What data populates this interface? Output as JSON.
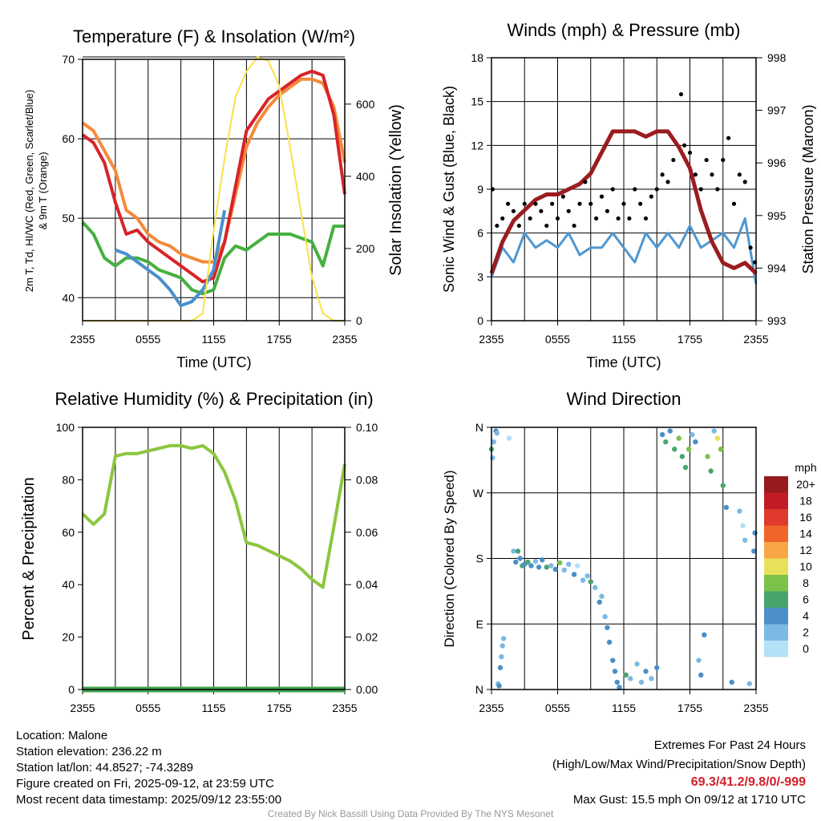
{
  "x_ticks": [
    "2355",
    "0555",
    "1155",
    "1755",
    "2355"
  ],
  "chart_data": [
    {
      "type": "line",
      "title": "Temperature (F) & Insolation (W/m²)",
      "xlabel": "Time (UTC)",
      "ylabel_lines": [
        "2m T, Td, HI/WC (Red, Green, Scarlet/Blue)",
        "& 9m T (Orange)"
      ],
      "ylabel_right": "Solar Insolation (Yellow)",
      "ylim": [
        37.1,
        70
      ],
      "ylim_right": [
        0,
        724
      ],
      "yticks": [
        40,
        50,
        60,
        70
      ],
      "yticks_right": [
        0,
        200,
        400,
        600
      ],
      "x_hours": [
        0,
        1,
        2,
        3,
        4,
        5,
        6,
        7,
        8,
        9,
        10,
        11,
        12,
        13,
        14,
        15,
        16,
        17,
        18,
        19,
        20,
        21,
        22,
        23,
        24
      ],
      "series": [
        {
          "name": "9m T",
          "color": "#f58a3a",
          "axis": "left",
          "values": [
            62,
            61,
            58.5,
            56,
            51,
            50,
            48,
            47,
            46.5,
            45.5,
            45,
            44.5,
            44.5,
            47,
            53,
            59,
            62,
            64,
            65.5,
            66.5,
            67.5,
            67.5,
            67,
            64,
            57
          ]
        },
        {
          "name": "2m T",
          "color": "#d7242a",
          "axis": "left",
          "values": [
            60.5,
            59.5,
            57,
            52,
            48,
            48.5,
            47,
            46,
            45,
            44,
            43,
            42,
            42.5,
            47,
            54,
            61,
            63,
            65,
            66,
            67,
            68,
            68.5,
            68,
            63,
            53
          ]
        },
        {
          "name": "Td",
          "color": "#45b03e",
          "axis": "left",
          "values": [
            49.5,
            48,
            45,
            44,
            45,
            45,
            44.5,
            43.5,
            43,
            42.5,
            41,
            40.5,
            41,
            45,
            46.5,
            46,
            47,
            48,
            48,
            48,
            47.5,
            47,
            44,
            49,
            49
          ]
        },
        {
          "name": "HI/WC",
          "color": "#4a90cc",
          "axis": "left",
          "x_start": 3,
          "values": [
            46,
            45.5,
            44.5,
            43.5,
            42.5,
            41,
            39,
            39.5,
            41,
            43.5,
            51
          ]
        },
        {
          "name": "Solar Insolation",
          "color": "#fbe04a",
          "axis": "right",
          "values": [
            0,
            0,
            0,
            0,
            0,
            0,
            0,
            0,
            0,
            0,
            0,
            20,
            250,
            450,
            620,
            690,
            730,
            720,
            650,
            480,
            300,
            120,
            20,
            0,
            0
          ]
        }
      ]
    },
    {
      "type": "line",
      "title": "Winds (mph) & Pressure (mb)",
      "xlabel": "Time (UTC)",
      "ylabel": "Sonic Wind & Gust (Blue, Black)",
      "ylabel_right": "Station Pressure (Maroon)",
      "ylim": [
        0,
        18
      ],
      "ylim_right": [
        993,
        998
      ],
      "yticks": [
        0,
        3,
        6,
        9,
        12,
        15,
        18
      ],
      "yticks_right": [
        993,
        994,
        995,
        996,
        997,
        998
      ],
      "x_hours": [
        0,
        1,
        2,
        3,
        4,
        5,
        6,
        7,
        8,
        9,
        10,
        11,
        12,
        13,
        14,
        15,
        16,
        17,
        18,
        19,
        20,
        21,
        22,
        23,
        24
      ],
      "series": [
        {
          "name": "Sonic Wind",
          "color": "#4f97d1",
          "axis": "left",
          "values": [
            3,
            5,
            4,
            6,
            5,
            5.5,
            5,
            6,
            4.5,
            5,
            5,
            6,
            5,
            4,
            6,
            5,
            6,
            5,
            6.5,
            5,
            5.5,
            6,
            5,
            7,
            2.5
          ]
        },
        {
          "name": "Station Pressure",
          "color": "#9b1c1f",
          "axis": "right",
          "values": [
            993.9,
            994.5,
            994.9,
            995.1,
            995.3,
            995.4,
            995.4,
            995.5,
            995.6,
            995.8,
            996.2,
            996.6,
            996.6,
            996.6,
            996.5,
            996.6,
            996.6,
            996.3,
            995.9,
            995.1,
            994.5,
            994.1,
            994,
            994.1,
            993.9
          ]
        }
      ],
      "gust_points": [
        [
          0.1,
          9
        ],
        [
          0.5,
          6.5
        ],
        [
          1,
          7
        ],
        [
          1.5,
          8
        ],
        [
          2,
          7.5
        ],
        [
          2.5,
          6.5
        ],
        [
          3,
          8
        ],
        [
          3.5,
          7
        ],
        [
          4,
          8
        ],
        [
          4.5,
          7.5
        ],
        [
          5,
          6.5
        ],
        [
          5.5,
          8
        ],
        [
          6,
          7
        ],
        [
          6.5,
          8.5
        ],
        [
          7,
          7.5
        ],
        [
          7.5,
          6.5
        ],
        [
          8,
          8
        ],
        [
          8.5,
          9.5
        ],
        [
          9,
          8
        ],
        [
          9.5,
          7
        ],
        [
          10,
          8.5
        ],
        [
          10.5,
          7.5
        ],
        [
          11,
          9
        ],
        [
          11.5,
          7
        ],
        [
          12,
          8
        ],
        [
          12.5,
          7
        ],
        [
          13,
          9
        ],
        [
          13.5,
          8
        ],
        [
          14,
          7
        ],
        [
          14.5,
          8.5
        ],
        [
          15,
          9
        ],
        [
          15.5,
          10
        ],
        [
          16,
          9.5
        ],
        [
          16.5,
          11
        ],
        [
          17.2,
          15.5
        ],
        [
          17.5,
          12
        ],
        [
          18,
          11.5
        ],
        [
          18.5,
          10
        ],
        [
          19,
          9
        ],
        [
          19.5,
          11
        ],
        [
          20,
          10
        ],
        [
          20.5,
          9
        ],
        [
          21,
          11
        ],
        [
          21.5,
          12.5
        ],
        [
          22,
          8
        ],
        [
          22.5,
          10
        ],
        [
          23,
          9.5
        ],
        [
          23.5,
          5
        ],
        [
          23.9,
          4
        ]
      ]
    },
    {
      "type": "line",
      "title": "Relative Humidity (%) & Precipitation (in)",
      "ylabel": "Percent & Precipitation",
      "ylim": [
        0,
        100
      ],
      "ylim_right": [
        0,
        0.1
      ],
      "yticks": [
        0,
        20,
        40,
        60,
        80,
        100
      ],
      "yticks_right": [
        "0.00",
        "0.02",
        "0.04",
        "0.06",
        "0.08",
        "0.10"
      ],
      "x_hours": [
        0,
        1,
        2,
        3,
        4,
        5,
        6,
        7,
        8,
        9,
        10,
        11,
        12,
        13,
        14,
        15,
        16,
        17,
        18,
        19,
        20,
        21,
        22,
        23,
        24
      ],
      "series": [
        {
          "name": "Relative Humidity",
          "color": "#8cc63f",
          "axis": "left",
          "values": [
            67,
            63,
            67,
            89,
            90,
            90,
            91,
            92,
            93,
            93,
            92,
            93,
            90,
            83,
            72,
            56,
            55,
            53,
            51,
            49,
            46,
            42,
            39,
            62,
            86
          ]
        },
        {
          "name": "Precipitation",
          "color": "#3fa34d",
          "axis": "right",
          "values": [
            0,
            0,
            0,
            0,
            0,
            0,
            0,
            0,
            0,
            0,
            0,
            0,
            0,
            0,
            0,
            0,
            0,
            0,
            0,
            0,
            0,
            0,
            0,
            0,
            0
          ]
        }
      ]
    },
    {
      "type": "scatter",
      "title": "Wind Direction",
      "ylabel": "Direction (Colored By Speed)",
      "ylim": [
        0,
        360
      ],
      "yticks": [
        {
          "v": 0,
          "label": "N"
        },
        {
          "v": 90,
          "label": "E"
        },
        {
          "v": 180,
          "label": "S"
        },
        {
          "v": 270,
          "label": "W"
        },
        {
          "v": 360,
          "label": "N"
        }
      ],
      "points": [
        [
          0,
          330,
          6
        ],
        [
          0.1,
          318,
          3
        ],
        [
          0.2,
          340,
          3
        ],
        [
          0.4,
          355,
          4
        ],
        [
          0.5,
          352,
          2
        ],
        [
          0.6,
          8,
          3
        ],
        [
          0.7,
          5,
          4
        ],
        [
          0.8,
          30,
          4
        ],
        [
          0.9,
          45,
          3
        ],
        [
          1,
          60,
          3
        ],
        [
          1.1,
          70,
          2
        ],
        [
          1.6,
          345,
          1
        ],
        [
          2,
          190,
          3
        ],
        [
          2.2,
          175,
          4
        ],
        [
          2.4,
          190,
          6
        ],
        [
          2.6,
          180,
          4
        ],
        [
          2.8,
          170,
          6
        ],
        [
          3,
          172,
          4
        ],
        [
          3.3,
          175,
          6
        ],
        [
          3.6,
          170,
          5
        ],
        [
          4,
          176,
          3
        ],
        [
          4.3,
          168,
          4
        ],
        [
          4.6,
          178,
          4
        ],
        [
          5,
          168,
          6
        ],
        [
          5.4,
          170,
          3
        ],
        [
          5.8,
          165,
          4
        ],
        [
          6.2,
          174,
          8
        ],
        [
          6.6,
          164,
          3
        ],
        [
          7,
          172,
          2
        ],
        [
          7.5,
          158,
          4
        ],
        [
          7.8,
          170,
          1
        ],
        [
          8.3,
          150,
          3
        ],
        [
          8.7,
          156,
          2
        ],
        [
          9,
          148,
          7
        ],
        [
          9.4,
          140,
          2
        ],
        [
          9.8,
          120,
          4
        ],
        [
          10,
          128,
          3
        ],
        [
          10.3,
          100,
          3
        ],
        [
          10.5,
          85,
          4
        ],
        [
          10.7,
          65,
          5
        ],
        [
          11,
          40,
          4
        ],
        [
          11.2,
          25,
          4
        ],
        [
          11.4,
          10,
          4
        ],
        [
          11.6,
          3,
          5
        ],
        [
          12.2,
          20,
          6
        ],
        [
          12.6,
          15,
          3
        ],
        [
          13.2,
          35,
          3
        ],
        [
          13.6,
          10,
          2
        ],
        [
          14,
          25,
          4
        ],
        [
          14.5,
          15,
          3
        ],
        [
          15,
          30,
          4
        ],
        [
          15.5,
          350,
          4
        ],
        [
          15.8,
          340,
          6
        ],
        [
          16.2,
          355,
          5
        ],
        [
          16.6,
          330,
          7
        ],
        [
          17,
          345,
          8
        ],
        [
          17.3,
          320,
          6
        ],
        [
          17.6,
          305,
          6
        ],
        [
          17.9,
          330,
          8
        ],
        [
          18.2,
          350,
          2
        ],
        [
          18.5,
          340,
          4
        ],
        [
          18.8,
          40,
          3
        ],
        [
          19,
          20,
          4
        ],
        [
          19.3,
          75,
          4
        ],
        [
          19.6,
          320,
          8
        ],
        [
          19.9,
          300,
          6
        ],
        [
          20.2,
          355,
          3
        ],
        [
          20.5,
          345,
          10
        ],
        [
          20.8,
          330,
          8
        ],
        [
          21,
          280,
          6
        ],
        [
          21.3,
          250,
          5
        ],
        [
          21.8,
          10,
          4
        ],
        [
          22.5,
          245,
          3
        ],
        [
          22.8,
          225,
          1
        ],
        [
          23,
          205,
          2
        ],
        [
          23.4,
          8,
          3
        ],
        [
          23.8,
          190,
          4
        ],
        [
          23.9,
          215,
          4
        ]
      ],
      "legend": {
        "title": "mph",
        "labels": [
          "20+",
          "18",
          "16",
          "14",
          "12",
          "10",
          "8",
          "6",
          "4",
          "2",
          "0"
        ],
        "colors": [
          "#951b1e",
          "#c21d26",
          "#e03a2e",
          "#f06529",
          "#f7a745",
          "#e9e05a",
          "#7cc24a",
          "#48a56e",
          "#4a8fc7",
          "#7cb9e3",
          "#b3e1f7"
        ]
      }
    }
  ],
  "footer": {
    "left": [
      "Location: Malone",
      "Station elevation: 236.22 m",
      "Station lat/lon: 44.8527; -74.3289",
      "Figure created on Fri, 2025-09-12, at 23:59 UTC",
      "Most recent data timestamp: 2025/09/12 23:55:00"
    ],
    "extremes_title": "Extremes For Past 24 Hours",
    "extremes_subtitle": "(High/Low/Max Wind/Precipitation/Snow Depth)",
    "extremes_values": "69.3/41.2/9.8/0/-999",
    "max_gust": "Max Gust: 15.5 mph On 09/12 at 1710 UTC",
    "credit": "Created By Nick Bassill Using Data Provided By The NYS Mesonet"
  }
}
